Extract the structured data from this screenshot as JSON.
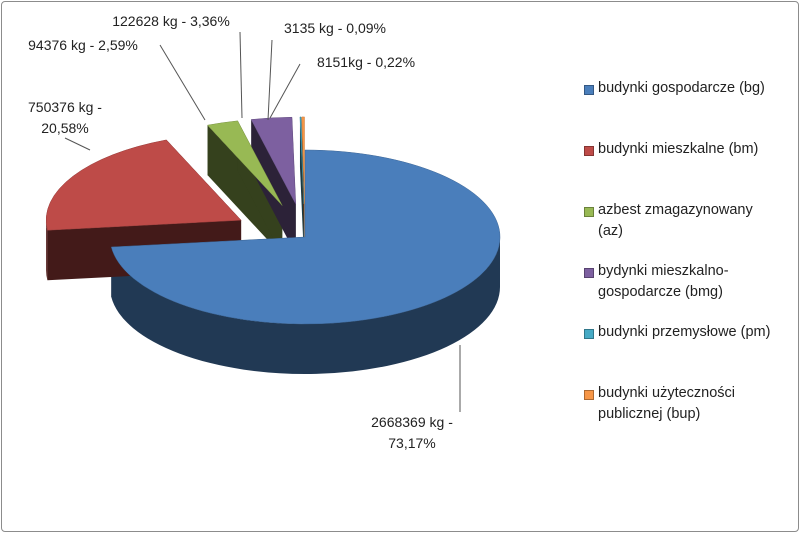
{
  "chart_data": {
    "type": "pie",
    "categories": [
      "budynki gospodarcze (bg)",
      "budynki mieszkalne (bm)",
      "azbest zmagazynowany (az)",
      "bydynki mieszkalno-gospodarcze (bmg)",
      "budynki przemysłowe (pm)",
      "budynki użyteczności publicznej (bup)"
    ],
    "values": [
      2668369,
      750376,
      94376,
      122628,
      3135,
      8151
    ],
    "value_labels": [
      "2668369 kg - 73,17%",
      "750376 kg - 20,58%",
      "94376 kg - 2,59%",
      "122628 kg - 3,36%",
      "3135 kg - 0,09%",
      "8151kg - 0,22%"
    ],
    "colors": [
      "#4a7ebb",
      "#be4b48",
      "#98b954",
      "#7d60a0",
      "#46aac5",
      "#f79646"
    ],
    "legend": "right"
  }
}
